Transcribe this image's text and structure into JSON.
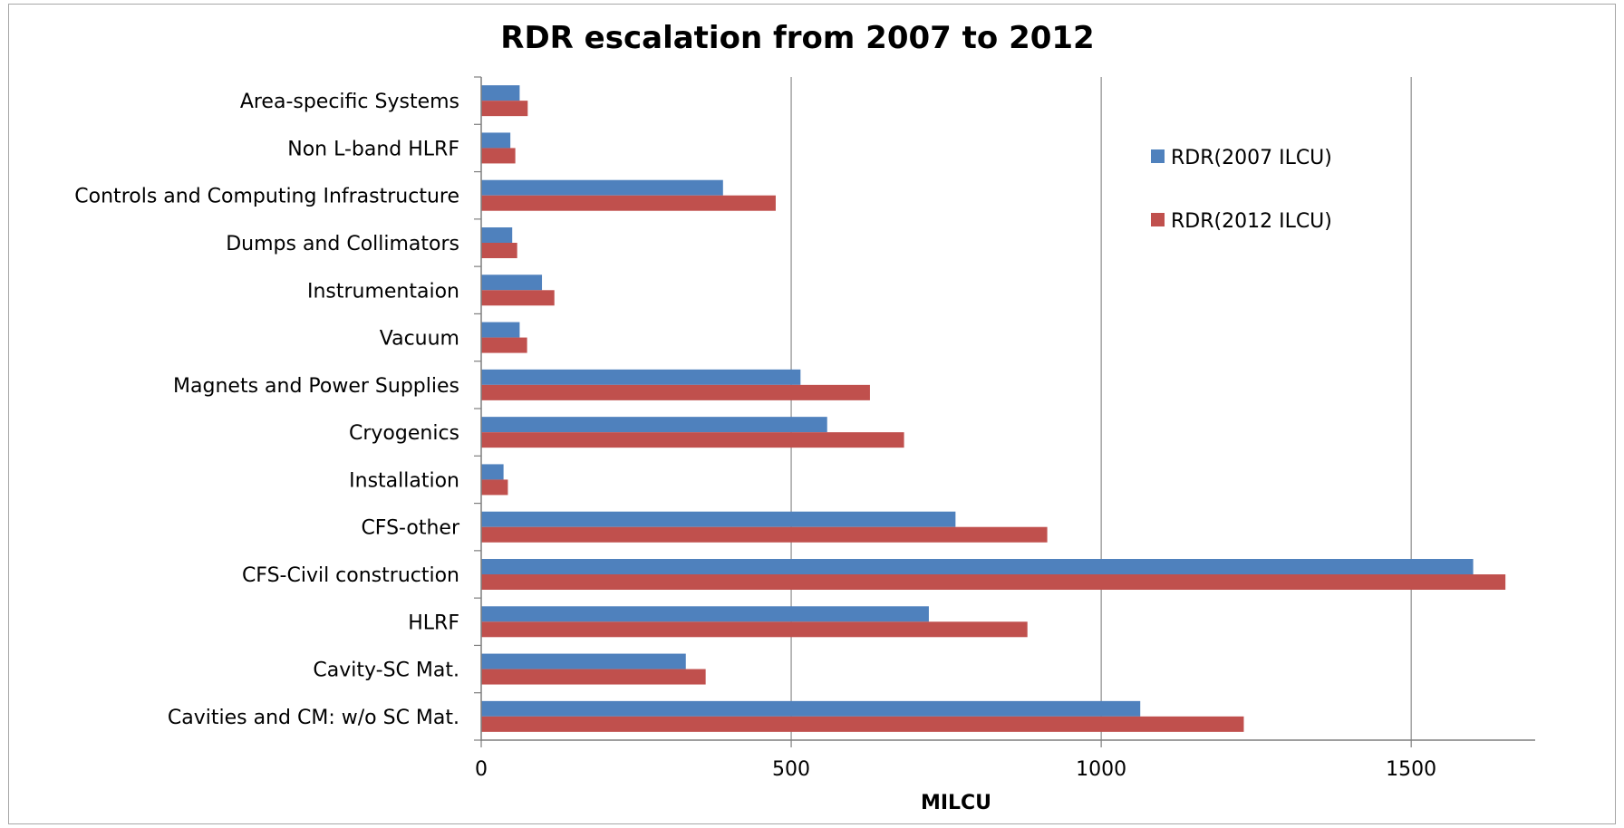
{
  "chart_data": {
    "type": "bar",
    "orientation": "horizontal",
    "title": "RDR escalation from 2007 to 2012",
    "xlabel": "MILCU",
    "ylabel": "",
    "xlim": [
      0,
      1700
    ],
    "x_ticks": [
      0,
      500,
      1000,
      1500
    ],
    "grid": "vertical major gridlines",
    "legend_position": "top-right",
    "categories": [
      "Area-specific Systems",
      "Non L-band HLRF",
      "Controls and Computing Infrastructure",
      "Dumps and Collimators",
      "Instrumentaion",
      "Vacuum",
      "Magnets and Power Supplies",
      "Cryogenics",
      "Installation",
      "CFS-other",
      "CFS-Civil construction",
      "HLRF",
      "Cavity-SC Mat.",
      "Cavities and CM: w/o SC Mat."
    ],
    "series": [
      {
        "name": "RDR(2007 ILCU)",
        "color": "#4f81bd",
        "values": [
          62,
          47,
          390,
          50,
          98,
          62,
          515,
          558,
          36,
          765,
          1600,
          722,
          330,
          1063
        ]
      },
      {
        "name": "RDR(2012 ILCU)",
        "color": "#c0504d",
        "values": [
          75,
          55,
          475,
          58,
          118,
          74,
          627,
          682,
          43,
          913,
          1652,
          881,
          362,
          1230
        ]
      }
    ]
  }
}
